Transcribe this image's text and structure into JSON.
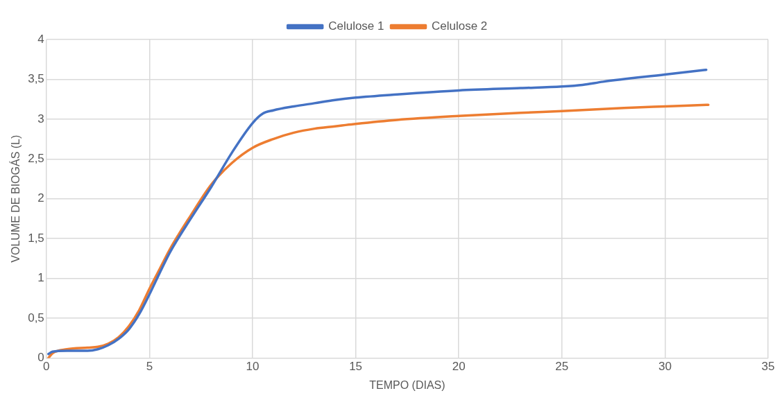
{
  "chart_data": {
    "type": "line",
    "xlabel": "TEMPO (DIAS)",
    "ylabel": "VOLUME DE BIOGÁS (L)",
    "xlim": [
      0,
      35
    ],
    "xticks": [
      0,
      5,
      10,
      15,
      20,
      25,
      30,
      35
    ],
    "ylim": [
      0,
      4
    ],
    "yticks": [
      0,
      {
        "value": 0.5,
        "label": "0,5"
      },
      1,
      {
        "value": 1.5,
        "label": "1,5"
      },
      2,
      {
        "value": 2.5,
        "label": "2,5"
      },
      3,
      {
        "value": 3.5,
        "label": "3,5"
      },
      4
    ],
    "grid": true,
    "legend": "top",
    "marker": "none",
    "line_style": "solid",
    "series": [
      {
        "name": "Celulose 1",
        "color": "#4472c4",
        "x": [
          0.1,
          0.3,
          1,
          2,
          2.5,
          3,
          3.5,
          4,
          4.5,
          5,
          5.5,
          6,
          7,
          8,
          9,
          10,
          10.5,
          11,
          12,
          13,
          14,
          15,
          17,
          20,
          23,
          25,
          26,
          27,
          30,
          32
        ],
        "values": [
          0.05,
          0.08,
          0.09,
          0.09,
          0.11,
          0.16,
          0.24,
          0.36,
          0.55,
          0.8,
          1.07,
          1.33,
          1.75,
          2.15,
          2.58,
          2.95,
          3.07,
          3.11,
          3.16,
          3.2,
          3.24,
          3.27,
          3.31,
          3.36,
          3.39,
          3.41,
          3.43,
          3.47,
          3.56,
          3.62
        ]
      },
      {
        "name": "Celulose 2",
        "color": "#ed7d31",
        "x": [
          0.1,
          0.3,
          1,
          2,
          2.5,
          3,
          3.5,
          4,
          4.5,
          5,
          5.5,
          6,
          7,
          8,
          9,
          10,
          11,
          12,
          13,
          14,
          15,
          17,
          20,
          23,
          25,
          28,
          30,
          32.1
        ],
        "values": [
          0,
          0.06,
          0.11,
          0.13,
          0.14,
          0.18,
          0.26,
          0.4,
          0.6,
          0.87,
          1.12,
          1.37,
          1.79,
          2.18,
          2.45,
          2.64,
          2.75,
          2.83,
          2.88,
          2.91,
          2.94,
          2.99,
          3.04,
          3.08,
          3.1,
          3.14,
          3.16,
          3.18
        ]
      }
    ]
  }
}
